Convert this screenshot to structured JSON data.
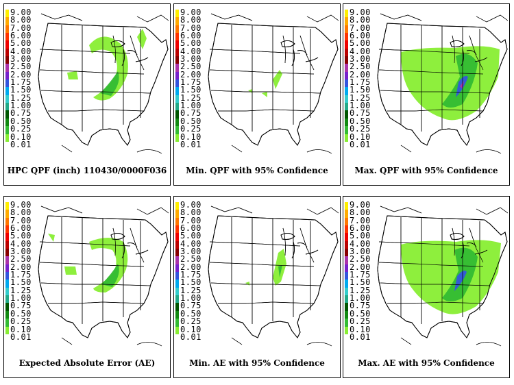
{
  "legend": {
    "values": [
      "9.00",
      "8.00",
      "7.00",
      "6.00",
      "5.00",
      "4.00",
      "3.00",
      "2.50",
      "2.00",
      "1.75",
      "1.50",
      "1.25",
      "1.00",
      "0.75",
      "0.50",
      "0.25",
      "0.10",
      "0.01"
    ],
    "colors": [
      "#ffee00",
      "#ffaa00",
      "#ff7700",
      "#ff3300",
      "#ee0000",
      "#bb0000",
      "#880000",
      "#aa33aa",
      "#7722cc",
      "#3355dd",
      "#00aaee",
      "#33cccc",
      "#22aa88",
      "#005500",
      "#118811",
      "#33bb33",
      "#88ee33",
      "#ffffff"
    ]
  },
  "panels": [
    {
      "caption": "HPC QPF (inch) 110430/0000F036"
    },
    {
      "caption": "Min. QPF with 95% Confidence"
    },
    {
      "caption": "Max. QPF with 95% Confidence"
    },
    {
      "caption": "Expected Absolute Error (AE)"
    },
    {
      "caption": "Min. AE with 95% Confidence"
    },
    {
      "caption": "Max. AE with 95% Confidence"
    }
  ]
}
